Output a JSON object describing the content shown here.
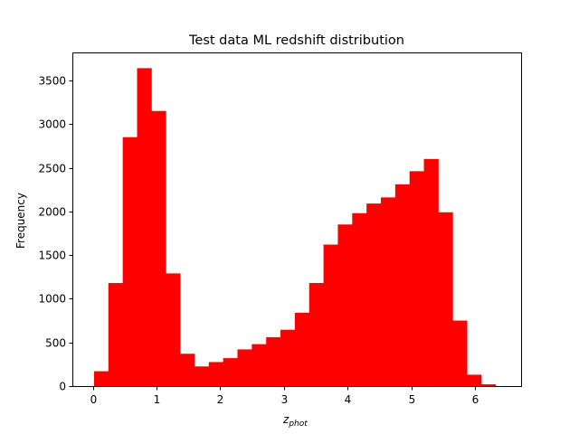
{
  "chart_data": {
    "type": "bar",
    "variant": "histogram",
    "title": "Test data ML redshift distribution",
    "xlabel": {
      "main": "z",
      "subscript": "phot"
    },
    "ylabel": "Frequency",
    "xlim": [
      -0.32,
      6.72
    ],
    "ylim": [
      0,
      3820
    ],
    "xticks": [
      0,
      1,
      2,
      3,
      4,
      5,
      6
    ],
    "yticks": [
      0,
      500,
      1000,
      1500,
      2000,
      2500,
      3000,
      3500
    ],
    "bar_color": "#ff0000",
    "bin_edges": [
      0.02,
      0.245,
      0.47,
      0.695,
      0.92,
      1.145,
      1.37,
      1.595,
      1.82,
      2.045,
      2.27,
      2.495,
      2.72,
      2.945,
      3.17,
      3.395,
      3.62,
      3.845,
      4.07,
      4.295,
      4.52,
      4.745,
      4.97,
      5.195,
      5.42,
      5.645,
      5.87,
      6.095,
      6.32
    ],
    "values": [
      170,
      1180,
      2850,
      3640,
      3150,
      1290,
      370,
      225,
      275,
      320,
      420,
      480,
      560,
      645,
      840,
      1180,
      1620,
      1850,
      1980,
      2090,
      2160,
      2310,
      2460,
      2600,
      1990,
      750,
      130,
      20
    ]
  }
}
